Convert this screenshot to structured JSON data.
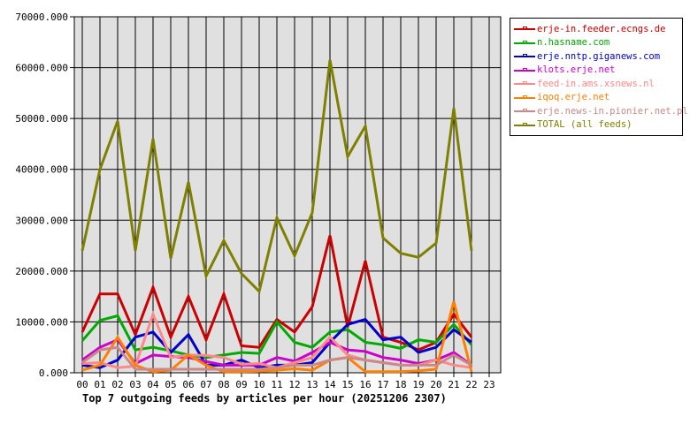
{
  "chart_data": {
    "type": "line",
    "title": "Top 7 outgoing feeds by articles per hour (20251206 2307)",
    "xlabel": "",
    "ylabel": "",
    "ylim": [
      0,
      70000
    ],
    "grid": true,
    "legend_position": "right",
    "x": [
      "00",
      "01",
      "02",
      "03",
      "04",
      "05",
      "06",
      "07",
      "08",
      "09",
      "10",
      "11",
      "12",
      "13",
      "14",
      "15",
      "16",
      "17",
      "18",
      "19",
      "20",
      "21",
      "22",
      "23"
    ],
    "y_ticks": [
      "0.000",
      "10000.000",
      "20000.000",
      "30000.000",
      "40000.000",
      "50000.000",
      "60000.000",
      "70000.000"
    ],
    "series": [
      {
        "name": "erje-in.feeder.ecngs.de",
        "color": "#cc0000",
        "values": [
          8000,
          15500,
          15500,
          7500,
          16800,
          7000,
          15000,
          6500,
          15500,
          5300,
          5000,
          10500,
          8000,
          13000,
          27000,
          9000,
          22000,
          7000,
          6000,
          4500,
          6000,
          11500,
          7000
        ]
      },
      {
        "name": "n.hasname.com",
        "color": "#00aa00",
        "values": [
          6300,
          10300,
          11200,
          4500,
          5000,
          4300,
          3500,
          3000,
          3500,
          4000,
          3800,
          10000,
          6000,
          5000,
          8000,
          8500,
          6000,
          5500,
          4800,
          6500,
          6000,
          9500,
          5500
        ]
      },
      {
        "name": "erje.nntp.giganews.com",
        "color": "#0000cc",
        "values": [
          1500,
          1000,
          2500,
          7000,
          8000,
          4000,
          7500,
          1500,
          1500,
          2500,
          1000,
          1500,
          1500,
          2000,
          6000,
          9500,
          10500,
          6500,
          7000,
          4000,
          5000,
          8500,
          6000
        ]
      },
      {
        "name": "klots.erje.net",
        "color": "#cc00cc",
        "values": [
          2500,
          5000,
          6500,
          1800,
          3500,
          3200,
          3000,
          2200,
          1500,
          1500,
          1500,
          3000,
          2300,
          4000,
          6000,
          4500,
          4200,
          3000,
          2500,
          1800,
          2500,
          4000,
          1500
        ]
      },
      {
        "name": "feed-in.ams.xsnews.nl",
        "color": "#ff8888",
        "values": [
          1800,
          2000,
          1000,
          1300,
          11500,
          3000,
          3500,
          3400,
          3000,
          1700,
          1800,
          1000,
          2000,
          3000,
          7000,
          3500,
          2500,
          2000,
          1500,
          1500,
          2500,
          1500,
          1000
        ]
      },
      {
        "name": "iqoq.erje.net",
        "color": "#ff8000",
        "values": [
          500,
          1500,
          7000,
          1500,
          200,
          500,
          3500,
          1500,
          200,
          200,
          300,
          500,
          800,
          500,
          2500,
          3000,
          200,
          200,
          200,
          400,
          700,
          14000,
          200
        ]
      },
      {
        "name": "erje.news-in.pionier.net.pl",
        "color": "#cc8888",
        "values": [
          2000,
          4500,
          5000,
          700,
          700,
          700,
          700,
          700,
          700,
          700,
          700,
          1000,
          1500,
          1500,
          2500,
          3000,
          2500,
          2000,
          1500,
          1500,
          1500,
          3500,
          1500
        ]
      },
      {
        "name": "TOTAL (all feeds)",
        "color": "#808000",
        "values": [
          24000,
          40000,
          49500,
          24000,
          46000,
          22500,
          37500,
          19000,
          26000,
          19500,
          16000,
          30500,
          23000,
          31500,
          61500,
          42500,
          48500,
          26500,
          23500,
          22700,
          25500,
          52000,
          24000
        ]
      }
    ]
  },
  "colors": {
    "plot_background": "#e0e0e0",
    "grid": "#000000",
    "page_background": "#ffffff"
  }
}
